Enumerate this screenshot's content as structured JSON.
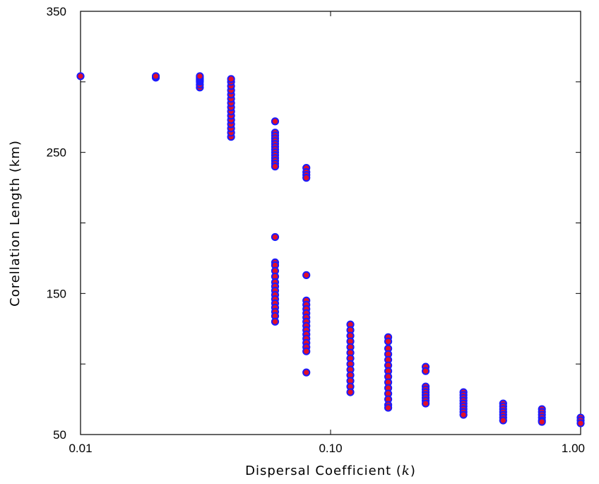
{
  "chart_data": {
    "type": "scatter",
    "title": "",
    "xlabel": "Dispersal Coefficient (k)",
    "xlabel_main": "Dispersal Coefficient (",
    "xlabel_var": "k",
    "xlabel_end": ")",
    "ylabel": "Corellation Length (km)",
    "xscale": "log",
    "xlim": [
      0.01,
      1.0
    ],
    "ylim": [
      50,
      350
    ],
    "x_ticks": [
      0.01,
      0.1,
      1.0
    ],
    "x_tick_labels": [
      "0.01",
      "0.10",
      "1.00"
    ],
    "y_ticks": [
      50,
      150,
      250,
      350
    ],
    "y_tick_labels": [
      "50",
      "150",
      "250",
      "350"
    ],
    "y_minor_ticks": [
      100,
      200,
      300
    ],
    "grid": false,
    "legend": "none",
    "marker_fill": "#e0102a",
    "marker_edge": "#1a1aff",
    "columns": [
      {
        "x": 0.01,
        "y": [
          304
        ]
      },
      {
        "x": 0.02,
        "y": [
          303,
          304
        ]
      },
      {
        "x": 0.03,
        "y": [
          296,
          298,
          300,
          301,
          302,
          303,
          304
        ]
      },
      {
        "x": 0.04,
        "y": [
          261,
          264,
          267,
          270,
          273,
          276,
          279,
          282,
          285,
          288,
          291,
          294,
          297,
          300,
          302
        ]
      },
      {
        "x": 0.06,
        "y": [
          272,
          264,
          262,
          260,
          258,
          256,
          254,
          252,
          250,
          248,
          246,
          244,
          242,
          240,
          190,
          172,
          170,
          166,
          162,
          158,
          155,
          152,
          149,
          146,
          143,
          140,
          137,
          134,
          130
        ]
      },
      {
        "x": 0.08,
        "y": [
          239,
          236,
          234,
          232,
          163,
          145,
          142,
          139,
          136,
          133,
          130,
          127,
          124,
          121,
          118,
          115,
          112,
          109,
          94
        ]
      },
      {
        "x": 0.12,
        "y": [
          128,
          124,
          120,
          116,
          112,
          108,
          104,
          100,
          96,
          92,
          88,
          84,
          80
        ]
      },
      {
        "x": 0.17,
        "y": [
          119,
          116,
          111,
          107,
          103,
          99,
          95,
          91,
          87,
          83,
          79,
          75,
          71,
          69
        ]
      },
      {
        "x": 0.24,
        "y": [
          98,
          95,
          84,
          82,
          80,
          78,
          76,
          74,
          72
        ]
      },
      {
        "x": 0.34,
        "y": [
          80,
          78,
          76,
          74,
          72,
          70,
          68,
          66,
          64
        ]
      },
      {
        "x": 0.49,
        "y": [
          72,
          70,
          68,
          66,
          64,
          62,
          60
        ]
      },
      {
        "x": 0.7,
        "y": [
          68,
          66,
          64,
          62,
          60,
          59
        ]
      },
      {
        "x": 1.0,
        "y": [
          62,
          60,
          58
        ]
      }
    ]
  }
}
